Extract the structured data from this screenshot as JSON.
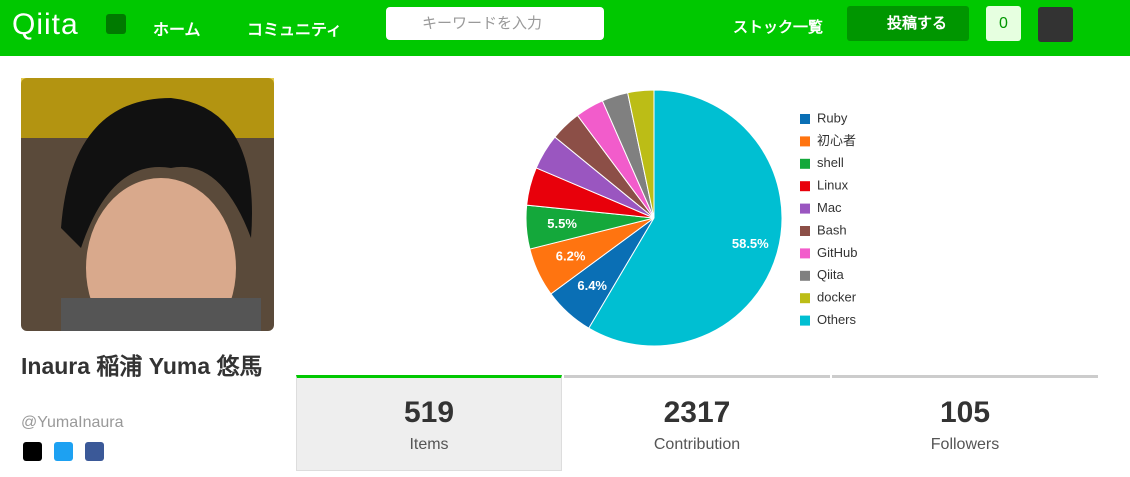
{
  "header": {
    "logo": "Qiita",
    "nav": [
      "ホーム",
      "コミュニティ"
    ],
    "search_placeholder": "キーワードを入力",
    "stock": "ストック一覧",
    "post": "投稿する",
    "notifications": "0"
  },
  "profile": {
    "name": "Inaura 稲浦 Yuma 悠馬",
    "handle": "@YumaInaura"
  },
  "chart_data": {
    "type": "pie",
    "categories": [
      "Ruby",
      "初心者",
      "shell",
      "Linux",
      "Mac",
      "Bash",
      "GitHub",
      "Qiita",
      "docker",
      "Others"
    ],
    "values": [
      6.4,
      6.2,
      5.5,
      4.8,
      4.5,
      3.9,
      3.6,
      3.3,
      3.3,
      58.5
    ],
    "value_labels": [
      "6.4%",
      "6.2%",
      "5.5%",
      null,
      null,
      null,
      null,
      null,
      null,
      "58.5%"
    ],
    "colors": [
      "#0a6fb5",
      "#ff7410",
      "#14a83b",
      "#e8000b",
      "#9a56c0",
      "#8c4f47",
      "#f25ccb",
      "#808080",
      "#bcbd16",
      "#00bfd2"
    ]
  },
  "stats": [
    {
      "value": 519,
      "label": "Items"
    },
    {
      "value": 2317,
      "label": "Contribution"
    },
    {
      "value": 105,
      "label": "Followers"
    }
  ]
}
